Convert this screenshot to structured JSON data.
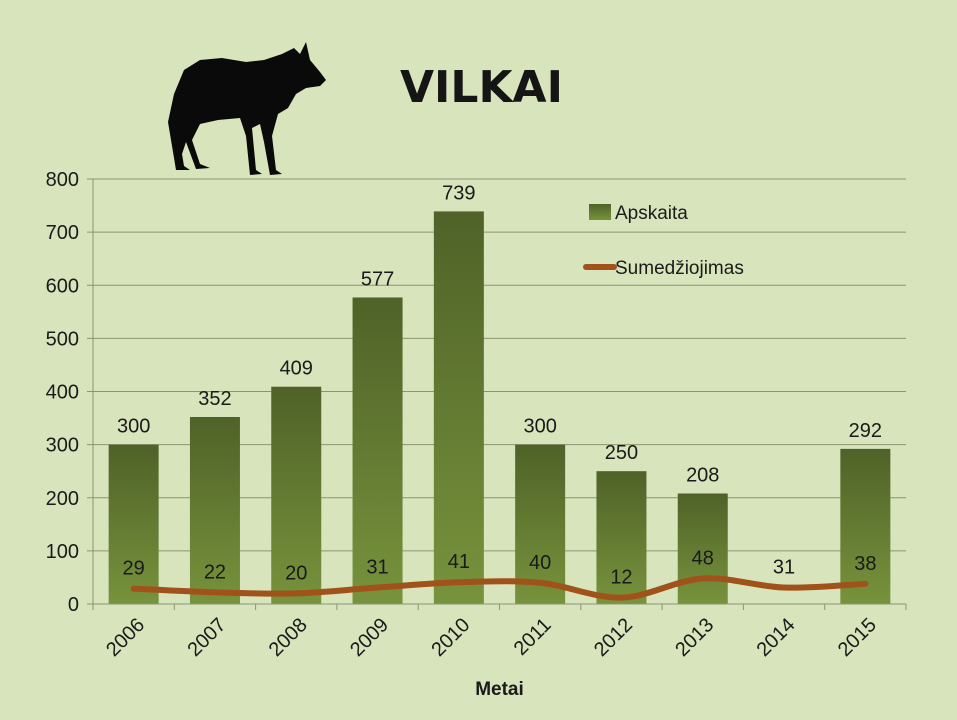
{
  "title": "VILKAI",
  "colors": {
    "background": "#d8e4bc",
    "bar_top": "#4f6228",
    "bar_bottom": "#77933c",
    "line": "#a0521a",
    "grid": "#8c9473",
    "text": "#1a1a1a"
  },
  "icons": [
    "wolf-silhouette-icon"
  ],
  "chart_data": {
    "type": "bar",
    "title": "VILKAI",
    "xlabel": "Metai",
    "ylabel": "",
    "categories": [
      "2006",
      "2007",
      "2008",
      "2009",
      "2010",
      "2011",
      "2012",
      "2013",
      "2014",
      "2015"
    ],
    "ylim": [
      0,
      800
    ],
    "yticks": [
      0,
      100,
      200,
      300,
      400,
      500,
      600,
      700,
      800
    ],
    "grid": true,
    "legend_position": "top-right",
    "series": [
      {
        "name": "Apskaita",
        "type": "bar",
        "values": [
          300,
          352,
          409,
          577,
          739,
          300,
          250,
          208,
          null,
          292
        ]
      },
      {
        "name": "Sumedžiojimas",
        "type": "line",
        "values": [
          29,
          22,
          20,
          31,
          41,
          40,
          12,
          48,
          31,
          38
        ]
      }
    ]
  }
}
